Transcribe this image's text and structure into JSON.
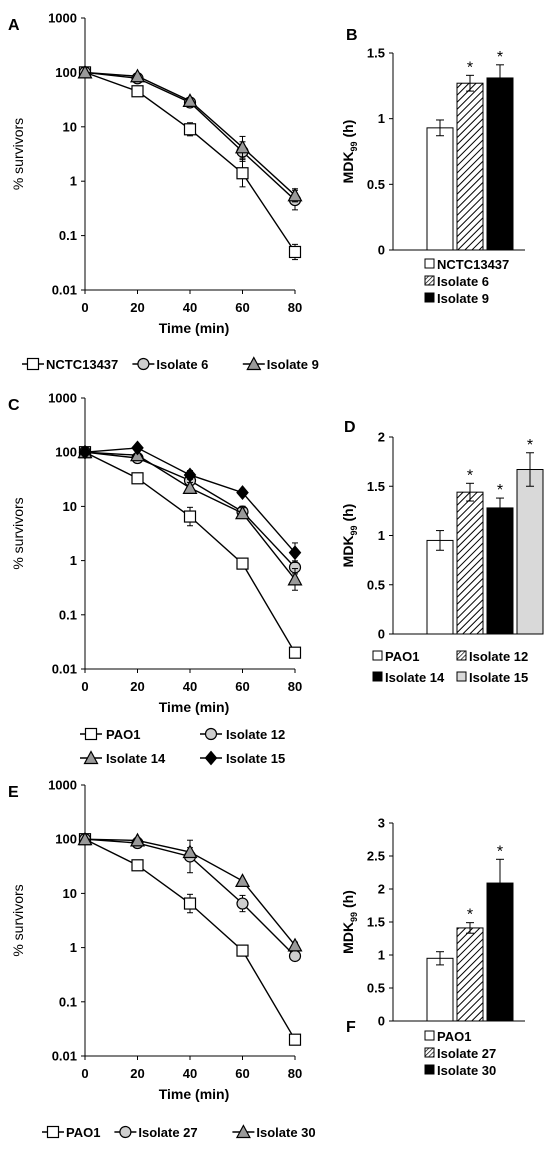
{
  "panels": [
    {
      "letter": "A",
      "chart_data": {
        "type": "line",
        "scale": "log",
        "xlabel": "Time (min)",
        "ylabel": "% survivors",
        "x": [
          0,
          20,
          40,
          60,
          80
        ],
        "x_ticks": [
          "0",
          "20",
          "40",
          "60",
          "80"
        ],
        "y_ticks": [
          "0.01",
          "0.1",
          "1",
          "10",
          "100",
          "1000"
        ],
        "ylim": [
          0.01,
          1000
        ],
        "series": [
          {
            "name": "NCTC13437",
            "marker": "square",
            "values": [
              100,
              45,
              9,
              1.4,
              0.05
            ],
            "err": [
              0,
              0.08,
              0.12,
              0.25,
              0.14
            ]
          },
          {
            "name": "Isolate 6",
            "marker": "circle",
            "values": [
              100,
              78,
              28,
              3.5,
              0.45
            ],
            "err": [
              0,
              0.03,
              0.04,
              0.18,
              0.18
            ]
          },
          {
            "name": "Isolate 9",
            "marker": "triangle",
            "values": [
              100,
              85,
              30,
              4.2,
              0.55
            ],
            "err": [
              0,
              0.03,
              0.03,
              0.2,
              0.12
            ]
          }
        ],
        "legend_layout": "row"
      }
    },
    {
      "letter": "B",
      "chart_data": {
        "type": "bar",
        "scale": "linear",
        "ylabel": "MDK",
        "ylabel_sub": "99",
        "ylabel_suffix": " (h)",
        "ylim": [
          0,
          1.5
        ],
        "y_ticks": [
          "0",
          "0.5",
          "1",
          "1.5"
        ],
        "categories": [
          "NCTC13437",
          "Isolate 6",
          "Isolate 9"
        ],
        "fills": [
          "white",
          "hatch",
          "black"
        ],
        "values": [
          0.93,
          1.27,
          1.31
        ],
        "err": [
          0.06,
          0.06,
          0.1
        ],
        "significant": [
          false,
          true,
          true
        ],
        "star_label": "*",
        "legend_layout": "column"
      }
    },
    {
      "letter": "C",
      "chart_data": {
        "type": "line",
        "scale": "log",
        "xlabel": "Time (min)",
        "ylabel": "% survivors",
        "x": [
          0,
          20,
          40,
          60,
          80
        ],
        "x_ticks": [
          "0",
          "20",
          "40",
          "60",
          "80"
        ],
        "y_ticks": [
          "0.01",
          "0.1",
          "1",
          "10",
          "100",
          "1000"
        ],
        "ylim": [
          0.01,
          1000
        ],
        "series": [
          {
            "name": "PAO1",
            "marker": "square",
            "values": [
              100,
              33,
              6.5,
              0.88,
              0.02
            ],
            "err": [
              0,
              0.04,
              0.17,
              0,
              0
            ]
          },
          {
            "name": "Isolate 12",
            "marker": "circle",
            "values": [
              100,
              78,
              30,
              8,
              0.75
            ],
            "err": [
              0,
              0.03,
              0.12,
              0.1,
              0.12
            ]
          },
          {
            "name": "Isolate 14",
            "marker": "triangle",
            "values": [
              100,
              88,
              22,
              7.5,
              0.45
            ],
            "err": [
              0,
              0.03,
              0.1,
              0.1,
              0.2
            ]
          },
          {
            "name": "Isolate 15",
            "marker": "diamond",
            "values": [
              100,
              120,
              38,
              18,
              1.4
            ],
            "err": [
              0,
              0.03,
              0.08,
              0.03,
              0.18
            ]
          }
        ],
        "legend_layout": "grid"
      }
    },
    {
      "letter": "D",
      "chart_data": {
        "type": "bar",
        "scale": "linear",
        "ylabel": "MDK",
        "ylabel_sub": "99",
        "ylabel_suffix": " (h)",
        "ylim": [
          0,
          2
        ],
        "y_ticks": [
          "0",
          "0.5",
          "1",
          "1.5",
          "2"
        ],
        "categories": [
          "PAO1",
          "Isolate 12",
          "Isolate 14",
          "Isolate 15"
        ],
        "fills": [
          "white",
          "hatch",
          "black",
          "gray"
        ],
        "values": [
          0.95,
          1.44,
          1.28,
          1.67
        ],
        "err": [
          0.1,
          0.09,
          0.1,
          0.17
        ],
        "significant": [
          false,
          true,
          true,
          true
        ],
        "star_label": "*",
        "legend_layout": "grid"
      }
    },
    {
      "letter": "E",
      "chart_data": {
        "type": "line",
        "scale": "log",
        "xlabel": "Time (min)",
        "ylabel": "% survivors",
        "x": [
          0,
          20,
          40,
          60,
          80
        ],
        "x_ticks": [
          "0",
          "20",
          "40",
          "60",
          "80"
        ],
        "y_ticks": [
          "0.01",
          "0.1",
          "1",
          "10",
          "100",
          "1000"
        ],
        "ylim": [
          0.01,
          1000
        ],
        "series": [
          {
            "name": "PAO1",
            "marker": "square",
            "values": [
              100,
              33,
              6.5,
              0.88,
              0.02
            ],
            "err": [
              0,
              0.04,
              0.17,
              0,
              0
            ]
          },
          {
            "name": "Isolate 27",
            "marker": "circle",
            "values": [
              100,
              85,
              48,
              6.5,
              0.7
            ],
            "err": [
              0,
              0.05,
              0.3,
              0.15,
              0.07
            ]
          },
          {
            "name": "Isolate 30",
            "marker": "triangle",
            "values": [
              100,
              95,
              58,
              17,
              1.1
            ],
            "err": [
              0,
              0.05,
              0.08,
              0.03,
              0.06
            ]
          }
        ],
        "legend_layout": "row"
      }
    },
    {
      "letter": "F",
      "chart_data": {
        "type": "bar",
        "scale": "linear",
        "ylabel": "MDK",
        "ylabel_sub": "99",
        "ylabel_suffix": " (h)",
        "ylim": [
          0,
          3
        ],
        "y_ticks": [
          "0",
          "0.5",
          "1",
          "1.5",
          "2",
          "2.5",
          "3"
        ],
        "categories": [
          "PAO1",
          "Isolate 27",
          "Isolate 30"
        ],
        "fills": [
          "white",
          "hatch",
          "black"
        ],
        "values": [
          0.95,
          1.41,
          2.09
        ],
        "err": [
          0.1,
          0.08,
          0.36
        ],
        "significant": [
          false,
          true,
          true
        ],
        "star_label": "*",
        "legend_layout": "column"
      }
    }
  ]
}
